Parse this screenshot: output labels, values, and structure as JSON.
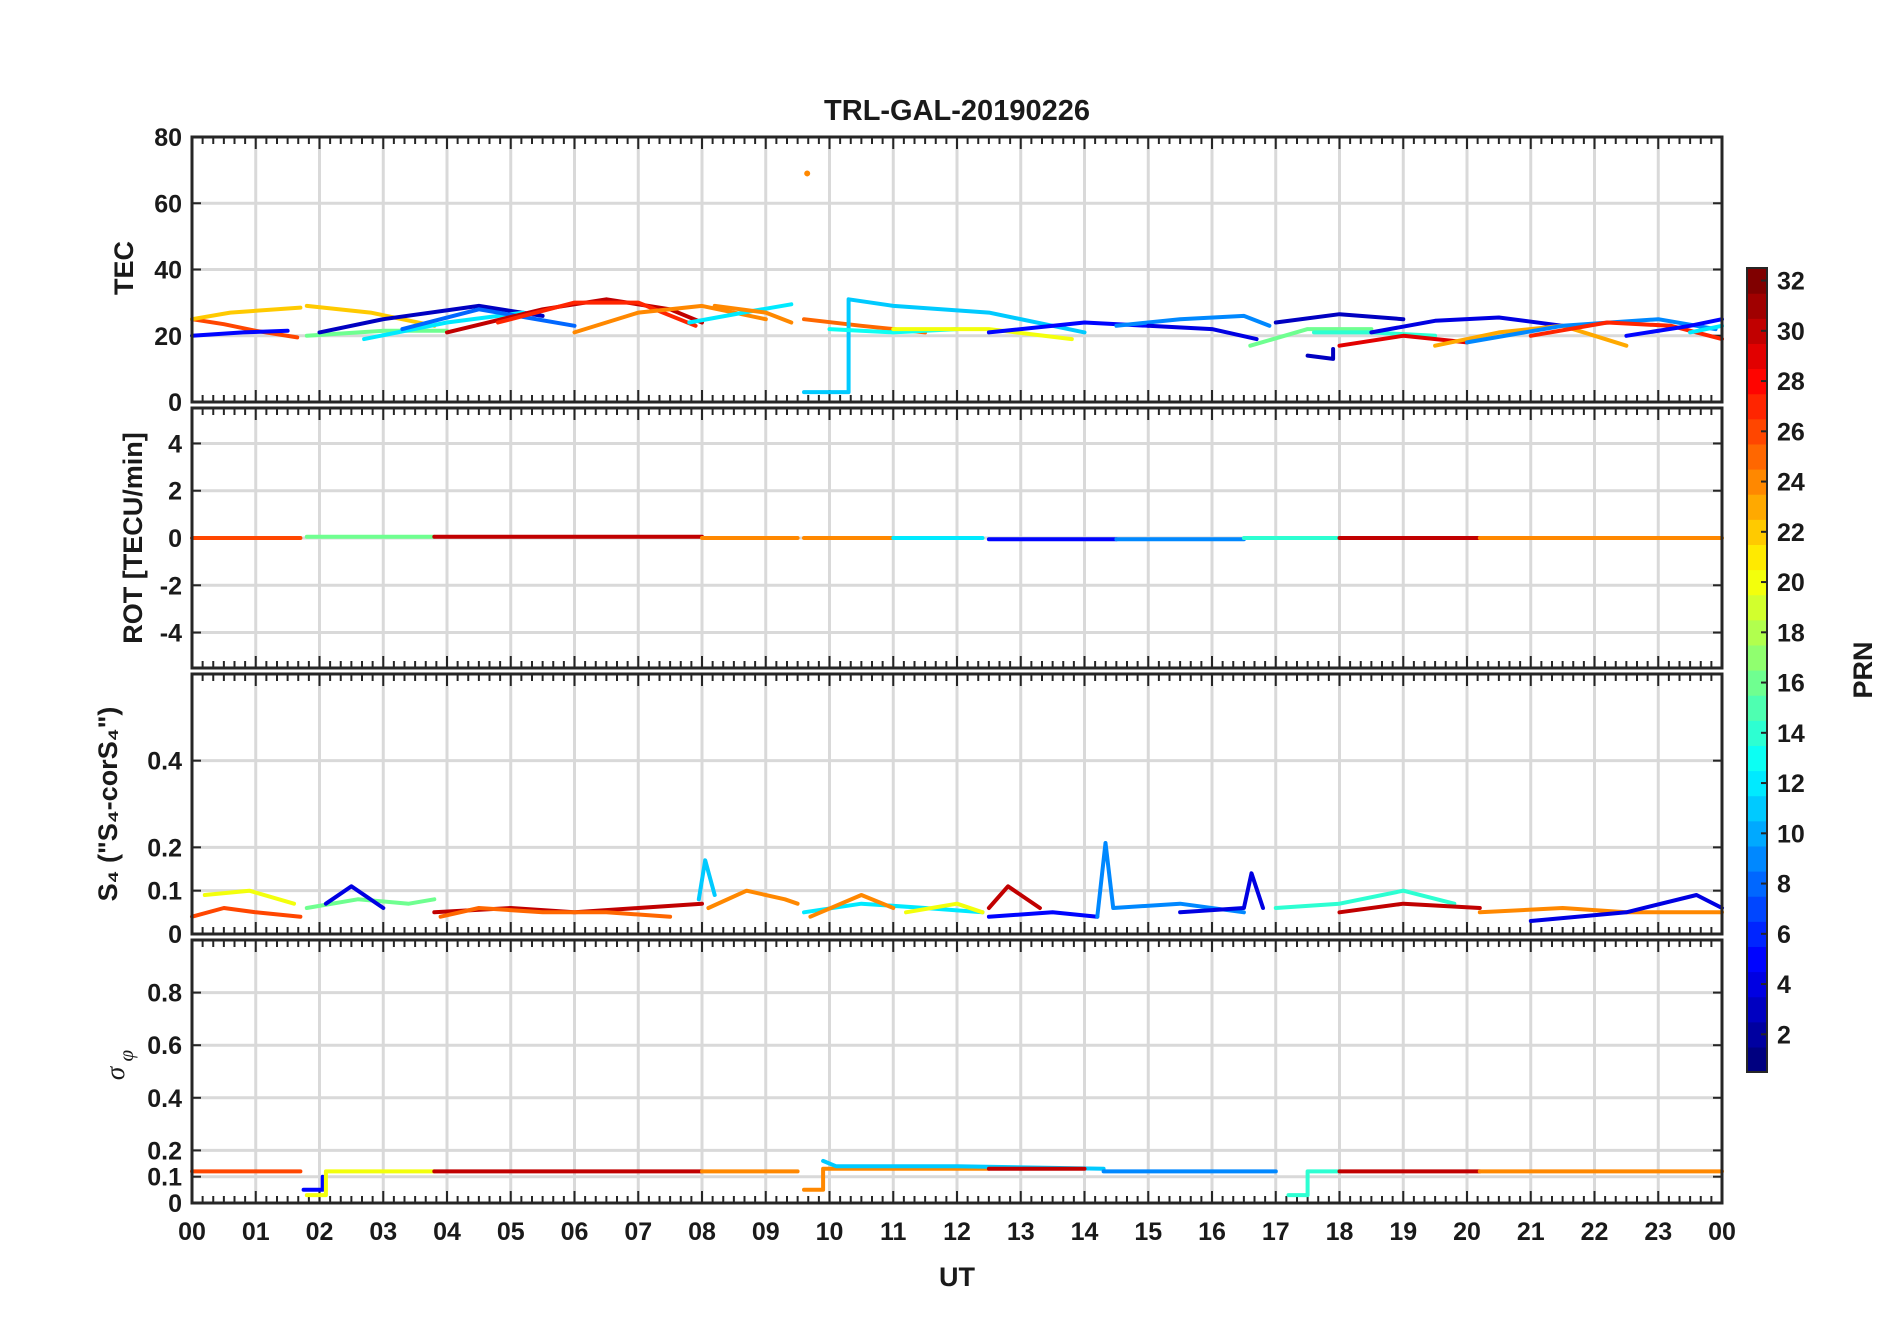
{
  "chart_data": {
    "type": "line",
    "title": "TRL-GAL-20190226",
    "xlabel": "UT",
    "x_ticks": [
      "00",
      "01",
      "02",
      "03",
      "04",
      "05",
      "06",
      "07",
      "08",
      "09",
      "10",
      "11",
      "12",
      "13",
      "14",
      "15",
      "16",
      "17",
      "18",
      "19",
      "20",
      "21",
      "22",
      "23",
      "00"
    ],
    "xlim": [
      0,
      24
    ],
    "grid": true,
    "panels": [
      {
        "name": "tec",
        "ylabel": "TEC",
        "ylim": [
          0,
          80
        ],
        "yticks": [
          0,
          20,
          40,
          60,
          80
        ],
        "ytick_labels": [
          "0",
          "20",
          "40",
          "60",
          "80"
        ],
        "series": [
          {
            "prn": 26,
            "x": [
              0.0,
              0.5,
              1.0,
              1.65
            ],
            "y": [
              25,
              23.5,
              21.5,
              19.5
            ]
          },
          {
            "prn": 5,
            "x": [
              0.0,
              0.8,
              1.5
            ],
            "y": [
              20,
              21,
              21.5
            ]
          },
          {
            "prn": 22,
            "x": [
              0.0,
              0.6,
              1.7
            ],
            "y": [
              25,
              27,
              28.5
            ]
          },
          {
            "prn": 22,
            "x": [
              1.8,
              2.8,
              3.8
            ],
            "y": [
              29,
              27,
              23
            ]
          },
          {
            "prn": 16,
            "x": [
              1.8,
              3.0,
              4.0
            ],
            "y": [
              20,
              21.5,
              21.5
            ]
          },
          {
            "prn": 3,
            "x": [
              2.0,
              3.0,
              4.5,
              5.5
            ],
            "y": [
              21,
              25,
              29,
              26
            ]
          },
          {
            "prn": 12,
            "x": [
              2.7,
              4.0,
              5.2
            ],
            "y": [
              19,
              24,
              27
            ]
          },
          {
            "prn": 8,
            "x": [
              3.3,
              4.5,
              6.0
            ],
            "y": [
              22,
              28,
              23
            ]
          },
          {
            "prn": 30,
            "x": [
              4.0,
              5.5,
              6.5,
              7.5,
              8.0
            ],
            "y": [
              21,
              28,
              31,
              28,
              24
            ]
          },
          {
            "prn": 27,
            "x": [
              4.8,
              6.0,
              7.0,
              7.9
            ],
            "y": [
              24,
              30,
              30,
              23
            ]
          },
          {
            "prn": 24,
            "x": [
              6.0,
              7.0,
              8.0,
              9.0
            ],
            "y": [
              21,
              27,
              29,
              25
            ]
          },
          {
            "prn": 12,
            "x": [
              7.8,
              8.8,
              9.4
            ],
            "y": [
              24,
              27.5,
              29.5
            ]
          },
          {
            "prn": 24,
            "x": [
              8.2,
              9.0,
              9.4
            ],
            "y": [
              29,
              27,
              24
            ]
          },
          {
            "prn": 25,
            "x": [
              9.6,
              10.5,
              11.5
            ],
            "y": [
              25,
              23,
              21
            ]
          },
          {
            "prn": 11,
            "x": [
              9.6,
              10.3,
              10.3,
              11.0,
              12.5,
              14.0
            ],
            "y": [
              3,
              3,
              31,
              29,
              27,
              21
            ]
          },
          {
            "prn": 13,
            "x": [
              10.0,
              11.0,
              12.0
            ],
            "y": [
              22,
              21,
              22
            ]
          },
          {
            "prn": 20,
            "x": [
              11.0,
              12.5,
              13.8
            ],
            "y": [
              22,
              22,
              19
            ]
          },
          {
            "prn": 5,
            "x": [
              12.5,
              14.0,
              15.0
            ],
            "y": [
              21,
              24,
              23
            ]
          },
          {
            "prn": 9,
            "x": [
              14.5,
              15.5,
              16.5,
              16.9
            ],
            "y": [
              23,
              25,
              26,
              23
            ]
          },
          {
            "prn": 4,
            "x": [
              15.0,
              16.0,
              16.7
            ],
            "y": [
              23,
              22,
              19
            ]
          },
          {
            "prn": 16,
            "x": [
              16.6,
              17.5,
              18.5
            ],
            "y": [
              17,
              22,
              22
            ]
          },
          {
            "prn": 3,
            "x": [
              17.0,
              18.0,
              19.0
            ],
            "y": [
              24,
              26.5,
              25
            ]
          },
          {
            "prn": 3,
            "x": [
              17.5,
              17.9,
              17.9
            ],
            "y": [
              14,
              13,
              16
            ]
          },
          {
            "prn": 14,
            "x": [
              17.6,
              18.5,
              19.5
            ],
            "y": [
              21,
              21,
              20
            ]
          },
          {
            "prn": 29,
            "x": [
              18.0,
              19.0,
              20.0
            ],
            "y": [
              17,
              20,
              18
            ]
          },
          {
            "prn": 4,
            "x": [
              18.5,
              19.5,
              20.5,
              21.5
            ],
            "y": [
              21,
              24.5,
              25.5,
              23
            ]
          },
          {
            "prn": 23,
            "x": [
              19.5,
              20.5,
              21.5,
              22.5
            ],
            "y": [
              17,
              21,
              23,
              17
            ]
          },
          {
            "prn": 9,
            "x": [
              20.0,
              21.5,
              23.0,
              23.9
            ],
            "y": [
              18,
              23,
              25,
              22
            ]
          },
          {
            "prn": 27,
            "x": [
              21.0,
              22.2,
              23.2,
              24.0
            ],
            "y": [
              20,
              24,
              23,
              19
            ]
          },
          {
            "prn": 5,
            "x": [
              22.5,
              23.5,
              24.0
            ],
            "y": [
              20,
              23,
              25
            ]
          },
          {
            "prn": 12,
            "x": [
              23.5,
              24.0
            ],
            "y": [
              21,
              23
            ]
          },
          {
            "prn": 24,
            "x": [
              9.65
            ],
            "y": [
              69
            ]
          }
        ]
      },
      {
        "name": "rot",
        "ylabel": "ROT [TECU/min]",
        "ylim": [
          -5.5,
          5.5
        ],
        "yticks": [
          -4,
          -2,
          0,
          2,
          4
        ],
        "ytick_labels": [
          "-4",
          "-2",
          "0",
          "2",
          "4"
        ],
        "series": [
          {
            "prn": 26,
            "x": [
              0.0,
              1.7
            ],
            "y": [
              0.0,
              0.0
            ]
          },
          {
            "prn": 16,
            "x": [
              1.8,
              3.8
            ],
            "y": [
              0.05,
              0.05
            ]
          },
          {
            "prn": 30,
            "x": [
              3.8,
              8.0
            ],
            "y": [
              0.05,
              0.05
            ]
          },
          {
            "prn": 24,
            "x": [
              8.0,
              9.5
            ],
            "y": [
              0.0,
              0.0
            ]
          },
          {
            "prn": 24,
            "x": [
              9.6,
              11.0
            ],
            "y": [
              0.0,
              0.0
            ]
          },
          {
            "prn": 12,
            "x": [
              11.0,
              12.4
            ],
            "y": [
              0.0,
              0.0
            ]
          },
          {
            "prn": 5,
            "x": [
              12.5,
              14.5
            ],
            "y": [
              -0.05,
              -0.05
            ]
          },
          {
            "prn": 9,
            "x": [
              14.5,
              16.5
            ],
            "y": [
              -0.05,
              -0.05
            ]
          },
          {
            "prn": 14,
            "x": [
              16.5,
              18.0
            ],
            "y": [
              0.0,
              0.0
            ]
          },
          {
            "prn": 30,
            "x": [
              18.0,
              20.2
            ],
            "y": [
              0.0,
              0.0
            ]
          },
          {
            "prn": 24,
            "x": [
              20.2,
              24.0
            ],
            "y": [
              0.0,
              0.0
            ]
          }
        ]
      },
      {
        "name": "s4",
        "ylabel": "S₄ (\"S₄-corS₄\")",
        "ylim": [
          0,
          0.6
        ],
        "yticks": [
          0,
          0.1,
          0.2,
          0.4
        ],
        "ytick_labels": [
          "0",
          "0.1",
          "0.2",
          "0.4"
        ],
        "series": [
          {
            "prn": 26,
            "x": [
              0.0,
              0.5,
              1.0,
              1.7
            ],
            "y": [
              0.04,
              0.06,
              0.05,
              0.04
            ]
          },
          {
            "prn": 20,
            "x": [
              0.2,
              0.9,
              1.6
            ],
            "y": [
              0.09,
              0.1,
              0.07
            ]
          },
          {
            "prn": 16,
            "x": [
              1.8,
              2.6,
              3.4,
              3.8
            ],
            "y": [
              0.06,
              0.08,
              0.07,
              0.08
            ]
          },
          {
            "prn": 4,
            "x": [
              2.1,
              2.5,
              3.0
            ],
            "y": [
              0.07,
              0.11,
              0.06
            ]
          },
          {
            "prn": 30,
            "x": [
              3.8,
              5.0,
              6.0,
              7.0,
              8.0
            ],
            "y": [
              0.05,
              0.06,
              0.05,
              0.06,
              0.07
            ]
          },
          {
            "prn": 25,
            "x": [
              3.9,
              4.5,
              5.5,
              6.5,
              7.5
            ],
            "y": [
              0.04,
              0.06,
              0.05,
              0.05,
              0.04
            ]
          },
          {
            "prn": 11,
            "x": [
              7.95,
              8.05,
              8.2
            ],
            "y": [
              0.08,
              0.17,
              0.09
            ]
          },
          {
            "prn": 24,
            "x": [
              8.1,
              8.7,
              9.3,
              9.5
            ],
            "y": [
              0.06,
              0.1,
              0.08,
              0.07
            ]
          },
          {
            "prn": 12,
            "x": [
              9.6,
              10.5,
              11.5,
              12.4
            ],
            "y": [
              0.05,
              0.07,
              0.06,
              0.05
            ]
          },
          {
            "prn": 24,
            "x": [
              9.7,
              10.5,
              11.0
            ],
            "y": [
              0.04,
              0.09,
              0.06
            ]
          },
          {
            "prn": 20,
            "x": [
              11.2,
              12.0,
              12.4
            ],
            "y": [
              0.05,
              0.07,
              0.05
            ]
          },
          {
            "prn": 30,
            "x": [
              12.5,
              12.8,
              13.3
            ],
            "y": [
              0.06,
              0.11,
              0.06
            ]
          },
          {
            "prn": 5,
            "x": [
              12.5,
              13.5,
              14.2
            ],
            "y": [
              0.04,
              0.05,
              0.04
            ]
          },
          {
            "prn": 9,
            "x": [
              14.2,
              14.33,
              14.45,
              15.5,
              16.5
            ],
            "y": [
              0.04,
              0.21,
              0.06,
              0.07,
              0.05
            ]
          },
          {
            "prn": 4,
            "x": [
              15.5,
              16.5,
              16.62,
              16.8
            ],
            "y": [
              0.05,
              0.06,
              0.14,
              0.06
            ]
          },
          {
            "prn": 14,
            "x": [
              17.0,
              18.0,
              19.0,
              19.8
            ],
            "y": [
              0.06,
              0.07,
              0.1,
              0.07
            ]
          },
          {
            "prn": 30,
            "x": [
              18.0,
              19.0,
              20.2
            ],
            "y": [
              0.05,
              0.07,
              0.06
            ]
          },
          {
            "prn": 24,
            "x": [
              20.2,
              21.5,
              22.5,
              24.0
            ],
            "y": [
              0.05,
              0.06,
              0.05,
              0.05
            ]
          },
          {
            "prn": 4,
            "x": [
              21.0,
              22.5,
              23.6,
              24.0
            ],
            "y": [
              0.03,
              0.05,
              0.09,
              0.06
            ]
          }
        ]
      },
      {
        "name": "sigma",
        "ylabel": "σ φ",
        "ylim": [
          0,
          1.0
        ],
        "yticks": [
          0,
          0.1,
          0.2,
          0.4,
          0.6,
          0.8
        ],
        "ytick_labels": [
          "0",
          "0.1",
          "0.2",
          "0.4",
          "0.6",
          "0.8"
        ],
        "series": [
          {
            "prn": 26,
            "x": [
              0.0,
              1.7
            ],
            "y": [
              0.12,
              0.12
            ]
          },
          {
            "prn": 5,
            "x": [
              1.75,
              2.05,
              2.05
            ],
            "y": [
              0.05,
              0.05,
              0.1
            ]
          },
          {
            "prn": 20,
            "x": [
              1.8,
              2.1,
              2.1,
              3.8
            ],
            "y": [
              0.03,
              0.03,
              0.12,
              0.12
            ]
          },
          {
            "prn": 30,
            "x": [
              3.8,
              8.0
            ],
            "y": [
              0.12,
              0.12
            ]
          },
          {
            "prn": 24,
            "x": [
              8.0,
              9.5
            ],
            "y": [
              0.12,
              0.12
            ]
          },
          {
            "prn": 24,
            "x": [
              9.6,
              9.9,
              9.9,
              12.5
            ],
            "y": [
              0.05,
              0.05,
              0.13,
              0.13
            ]
          },
          {
            "prn": 11,
            "x": [
              9.9,
              10.1,
              12.0,
              14.3
            ],
            "y": [
              0.16,
              0.14,
              0.14,
              0.13
            ]
          },
          {
            "prn": 30,
            "x": [
              12.5,
              14.0
            ],
            "y": [
              0.13,
              0.13
            ]
          },
          {
            "prn": 9,
            "x": [
              14.3,
              17.0
            ],
            "y": [
              0.12,
              0.12
            ]
          },
          {
            "prn": 14,
            "x": [
              17.2,
              17.5,
              17.5,
              18.0
            ],
            "y": [
              0.03,
              0.03,
              0.12,
              0.12
            ]
          },
          {
            "prn": 30,
            "x": [
              18.0,
              20.2
            ],
            "y": [
              0.12,
              0.12
            ]
          },
          {
            "prn": 24,
            "x": [
              20.2,
              24.0
            ],
            "y": [
              0.12,
              0.12
            ]
          }
        ]
      }
    ],
    "colorbar": {
      "label": "PRN",
      "colormap": "jet",
      "range": [
        1,
        32
      ],
      "ticks": [
        2,
        4,
        6,
        8,
        10,
        12,
        14,
        16,
        18,
        20,
        22,
        24,
        26,
        28,
        30,
        32
      ],
      "tick_labels": [
        "2",
        "4",
        "6",
        "8",
        "10",
        "12",
        "14",
        "16",
        "18",
        "20",
        "22",
        "24",
        "26",
        "28",
        "30",
        "32"
      ]
    }
  }
}
